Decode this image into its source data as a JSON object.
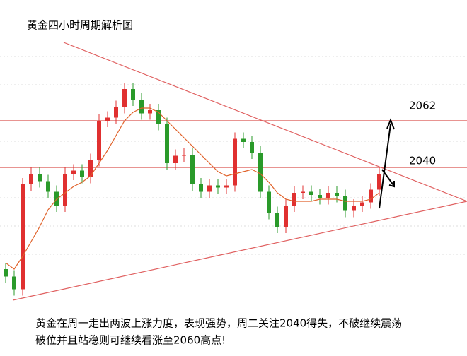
{
  "chart_data": {
    "type": "candlestick",
    "title": "黄金四小时周期解析图",
    "annotation_lines": [
      "黄金在周一走出两波上涨力度，表现强势，周二关注2040得失，不破继续震荡",
      "破位并且站稳则可继续看涨至2060高点!"
    ],
    "levels": [
      2062,
      2040
    ],
    "level_color": "#d9534f",
    "up_color": "#e03030",
    "down_color": "#2a9a2a",
    "ylim": [
      1951,
      2119
    ],
    "open": [
      1992,
      1988.5,
      1982.5,
      2032,
      2037,
      2033.5,
      2028.5,
      2022,
      2037,
      2038.5,
      2035.5,
      2043.5,
      2062,
      2063.5,
      2068.5,
      2077,
      2072,
      2065.5,
      2067,
      2060.5,
      2042,
      2045.5,
      2046,
      2032,
      2028.5,
      2031.5,
      2030.5,
      2031.5,
      2053.5,
      2052,
      2047,
      2028.5,
      2018.5,
      2012,
      2022,
      2028,
      2028.5,
      2027,
      2025.5,
      2028,
      2026.5,
      2019.5,
      2022,
      2023.5,
      2029.5
    ],
    "high": [
      1995,
      1991.5,
      2035,
      2040,
      2040,
      2036.5,
      2031.5,
      2040,
      2041.5,
      2041.5,
      2046.5,
      2065,
      2066.5,
      2071.5,
      2080,
      2080,
      2075,
      2070,
      2070,
      2063.5,
      2048.5,
      2049,
      2049,
      2035,
      2034.5,
      2034.5,
      2034.5,
      2056.5,
      2056.5,
      2055,
      2050,
      2031.5,
      2021.5,
      2025,
      2031,
      2031.5,
      2031.5,
      2030,
      2031,
      2031,
      2029.5,
      2025,
      2026.5,
      2032.5,
      2040
    ],
    "low": [
      1985.5,
      1979.5,
      1979.5,
      2029,
      2030.5,
      2025.5,
      2019,
      2019,
      2034,
      2032.5,
      2032.5,
      2040.5,
      2059,
      2060.5,
      2065.5,
      2069,
      2062.5,
      2062.5,
      2057.5,
      2039,
      2039,
      2042.5,
      2029,
      2025.5,
      2025.5,
      2027.5,
      2027.5,
      2028.5,
      2049,
      2044,
      2025.5,
      2015.5,
      2009,
      2009,
      2019,
      2025,
      2024,
      2022.5,
      2022.5,
      2023.5,
      2016.5,
      2016.5,
      2019,
      2020.5,
      2026.5
    ],
    "close": [
      1988.5,
      1982.5,
      2032,
      2037,
      2033.5,
      2028.5,
      2022,
      2037,
      2038.5,
      2035.5,
      2043.5,
      2062,
      2063.5,
      2068.5,
      2077,
      2072,
      2065.5,
      2067,
      2060.5,
      2042,
      2045.5,
      2046,
      2032,
      2028.5,
      2031.5,
      2030.5,
      2031.5,
      2053.5,
      2052,
      2047,
      2028.5,
      2018.5,
      2012,
      2022,
      2028,
      2028.5,
      2027,
      2025.5,
      2028,
      2026.5,
      2019.5,
      2022,
      2023.5,
      2029.5,
      2037
    ],
    "ma_color": "#e0622a",
    "ma_values": [
      1995,
      1992,
      1998,
      2005,
      2012,
      2020,
      2025,
      2028,
      2031,
      2033,
      2036,
      2042,
      2048,
      2055,
      2062,
      2066,
      2068,
      2068,
      2066,
      2062,
      2058,
      2054,
      2050,
      2046,
      2042,
      2038,
      2036,
      2037,
      2038,
      2039,
      2037,
      2033,
      2028,
      2025,
      2024,
      2024,
      2024,
      2025,
      2025,
      2025,
      2024,
      2024,
      2024,
      2025,
      2028
    ]
  }
}
